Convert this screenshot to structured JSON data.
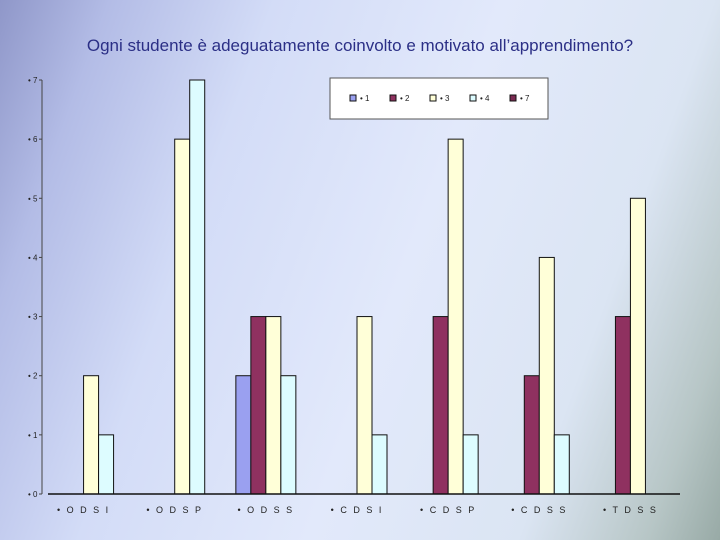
{
  "slide": {
    "title": "Ogni studente è adeguatamente coinvolto e motivato all’apprendimento?"
  },
  "chart_data": {
    "type": "bar",
    "title": "",
    "xlabel": "",
    "ylabel": "",
    "ylim": [
      0,
      7
    ],
    "yticks": [
      "• 0",
      "• 1",
      "• 2",
      "• 3",
      "• 4",
      "• 5",
      "• 6",
      "• 7"
    ],
    "categories": [
      "• O D S I",
      "• O D S P",
      "• O D S S",
      "• C D S I",
      "• C D S P",
      "• C D S S",
      "• T D S S"
    ],
    "series": [
      {
        "name": "• 1",
        "color": "#9aa0f0",
        "values": [
          0,
          0,
          2,
          0,
          0,
          0,
          0
        ]
      },
      {
        "name": "• 2",
        "color": "#8f3160",
        "values": [
          0,
          0,
          3,
          0,
          3,
          2,
          3
        ]
      },
      {
        "name": "• 3",
        "color": "#ffffd8",
        "values": [
          2,
          6,
          3,
          3,
          6,
          4,
          5
        ]
      },
      {
        "name": "• 4",
        "color": "#ddfcff",
        "values": [
          1,
          7,
          2,
          1,
          1,
          1,
          0
        ]
      },
      {
        "name": "• 7",
        "color": "#7a2a52",
        "values": [
          0,
          0,
          0,
          0,
          0,
          0,
          0
        ]
      }
    ],
    "legend": "top-right",
    "grid": false
  }
}
